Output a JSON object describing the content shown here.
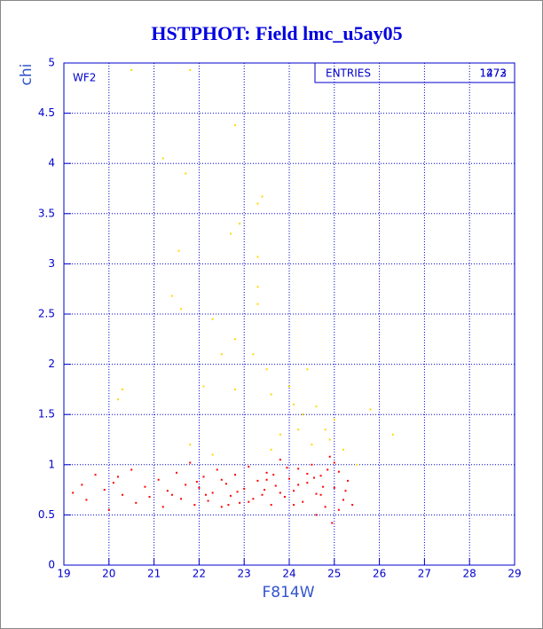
{
  "chart_data": {
    "type": "scatter",
    "title": "HSTPHOT: Field lmc_u5ay05",
    "x_label": "F814W",
    "y_label": "chi",
    "panel_label": "WF2",
    "stats_label": "ENTRIES",
    "entries": [
      1472,
      1273
    ],
    "xlim": [
      19,
      29
    ],
    "ylim": [
      0,
      5
    ],
    "xticks": [
      19,
      20,
      21,
      22,
      23,
      24,
      25,
      26,
      27,
      28,
      29
    ],
    "yticks": [
      0,
      0.5,
      1,
      1.5,
      2,
      2.5,
      3,
      3.5,
      4,
      4.5,
      5
    ],
    "grid": true,
    "series": [
      {
        "color": "#ffd800",
        "x": [
          20.5,
          21.8,
          21.2,
          21.7,
          22.8,
          23.4,
          23.3,
          22.9,
          22.7,
          21.55,
          23.3,
          23.3,
          21.4,
          21.6,
          22.3,
          23.3,
          22.8,
          23.2,
          22.5,
          23.5,
          24.4,
          20.3,
          20.2,
          22.1,
          22.8,
          23.6,
          24.0,
          24.3,
          24.8,
          25.0,
          25.8,
          26.3,
          24.5,
          23.8,
          24.6,
          25.2,
          21.8,
          22.3,
          24.1,
          25.5,
          23.6,
          24.9,
          24.2
        ],
        "values": [
          4.93,
          4.93,
          4.05,
          3.9,
          4.38,
          3.67,
          3.6,
          3.4,
          3.3,
          3.13,
          3.07,
          2.77,
          2.68,
          2.55,
          2.45,
          2.6,
          2.25,
          2.1,
          2.1,
          1.95,
          1.95,
          1.75,
          1.65,
          1.78,
          1.75,
          1.7,
          1.78,
          1.5,
          1.35,
          1.45,
          1.55,
          1.3,
          1.2,
          1.3,
          1.58,
          1.15,
          1.2,
          1.1,
          1.6,
          1.0,
          1.15,
          1.25,
          1.35
        ]
      },
      {
        "color": "#ff0000",
        "x": [
          19.2,
          19.4,
          19.5,
          19.7,
          19.9,
          20.0,
          20.1,
          20.3,
          20.5,
          20.6,
          20.8,
          20.9,
          21.1,
          21.2,
          21.3,
          21.5,
          21.6,
          21.7,
          21.8,
          21.9,
          22.0,
          22.1,
          22.2,
          22.3,
          22.4,
          22.5,
          22.6,
          22.7,
          22.8,
          22.9,
          23.0,
          23.1,
          23.2,
          23.3,
          23.4,
          23.5,
          23.6,
          23.7,
          23.8,
          23.9,
          24.0,
          24.1,
          24.2,
          24.3,
          24.4,
          24.5,
          24.6,
          24.7,
          24.8,
          24.9,
          25.0,
          25.1,
          25.2,
          25.3,
          25.4,
          24.95,
          24.6,
          23.5,
          23.8,
          24.4,
          24.7,
          25.0,
          24.2,
          22.5,
          21.4,
          20.2,
          23.1,
          24.85,
          25.25,
          24.55,
          23.65,
          22.85,
          22.15,
          21.95,
          24.1,
          25.1,
          23.95,
          24.75,
          22.65,
          23.45
        ],
        "values": [
          0.72,
          0.8,
          0.65,
          0.9,
          0.75,
          0.55,
          0.82,
          0.7,
          0.95,
          0.62,
          0.78,
          0.68,
          0.85,
          0.58,
          0.74,
          0.92,
          0.66,
          0.8,
          1.02,
          0.6,
          0.77,
          0.88,
          0.64,
          0.72,
          0.95,
          0.58,
          0.81,
          0.69,
          0.9,
          0.62,
          0.76,
          0.98,
          0.66,
          0.84,
          0.7,
          0.92,
          0.6,
          0.79,
          1.05,
          0.68,
          0.86,
          0.74,
          0.96,
          0.63,
          0.82,
          1.0,
          0.71,
          0.89,
          0.58,
          1.08,
          0.77,
          0.93,
          0.65,
          0.84,
          0.6,
          0.42,
          0.5,
          0.85,
          0.72,
          0.91,
          0.7,
          1.02,
          0.8,
          0.85,
          0.7,
          0.88,
          0.63,
          0.95,
          0.74,
          0.87,
          0.9,
          0.73,
          0.7,
          0.83,
          0.6,
          0.55,
          0.97,
          0.78,
          0.6,
          0.75
        ]
      }
    ]
  }
}
